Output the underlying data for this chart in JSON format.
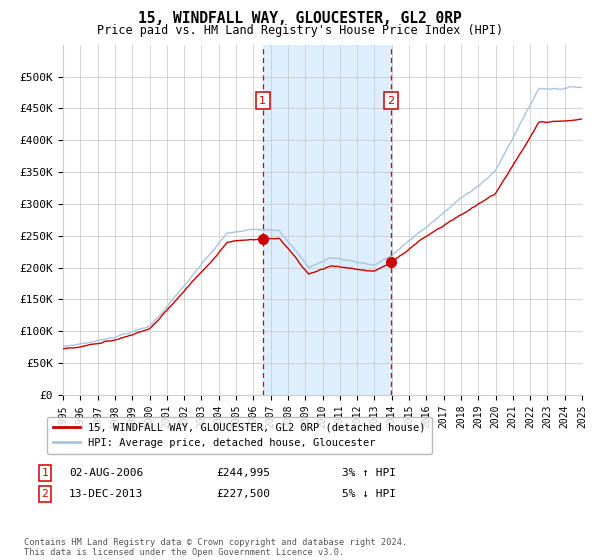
{
  "title": "15, WINDFALL WAY, GLOUCESTER, GL2 0RP",
  "subtitle": "Price paid vs. HM Land Registry's House Price Index (HPI)",
  "legend_line1": "15, WINDFALL WAY, GLOUCESTER, GL2 0RP (detached house)",
  "legend_line2": "HPI: Average price, detached house, Gloucester",
  "transaction1_date": "02-AUG-2006",
  "transaction1_price": 244995,
  "transaction1_label": "3% ↑ HPI",
  "transaction2_date": "13-DEC-2013",
  "transaction2_price": 227500,
  "transaction2_label": "5% ↓ HPI",
  "hpi_color": "#aac4e0",
  "price_color": "#cc0000",
  "marker_color": "#cc0000",
  "shade_color": "#ddeeff",
  "vline_color": "#cc0000",
  "grid_color": "#cccccc",
  "bg_color": "#ffffff",
  "footnote": "Contains HM Land Registry data © Crown copyright and database right 2024.\nThis data is licensed under the Open Government Licence v3.0.",
  "ylim": [
    0,
    550000
  ],
  "yticks": [
    0,
    50000,
    100000,
    150000,
    200000,
    250000,
    300000,
    350000,
    400000,
    450000,
    500000
  ],
  "xstart": 1995,
  "xend": 2025
}
